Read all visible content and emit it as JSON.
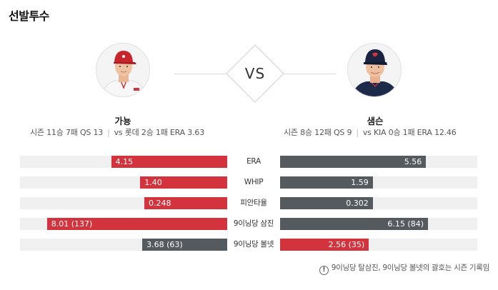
{
  "section": {
    "title": "선발투수"
  },
  "vs_label": "VS",
  "left_pitcher": {
    "name": "가뇽",
    "season": "시즌 11승 7패 QS 13",
    "versus": "vs 롯데 2승 1패 ERA 3.63"
  },
  "right_pitcher": {
    "name": "샘슨",
    "season": "시즌 8승 12패 QS 9",
    "versus": "vs KIA 0승 1패 ERA 12.46"
  },
  "stats": [
    {
      "label": "ERA",
      "left": "4.15",
      "right": "5.56",
      "left_fraction": 0.56,
      "right_fraction": 0.74,
      "left_color": "red",
      "right_color": "gray"
    },
    {
      "label": "WHIP",
      "left": "1.40",
      "right": "1.59",
      "left_fraction": 0.42,
      "right_fraction": 0.47,
      "left_color": "red",
      "right_color": "gray"
    },
    {
      "label": "피안타율",
      "left": "0.248",
      "right": "0.302",
      "left_fraction": 0.4,
      "right_fraction": 0.47,
      "left_color": "red",
      "right_color": "gray"
    },
    {
      "label": "9이닝당 삼진",
      "left": "8.01 (137)",
      "right": "6.15 (84)",
      "left_fraction": 0.87,
      "right_fraction": 0.75,
      "left_color": "red",
      "right_color": "gray"
    },
    {
      "label": "9이닝당 볼넷",
      "left": "3.68 (63)",
      "right": "2.56 (35)",
      "left_fraction": 0.41,
      "right_fraction": 0.45,
      "left_color": "gray",
      "right_color": "red"
    }
  ],
  "footnote": {
    "icon": "!",
    "text": "9이닝당 탈삼진, 9이닝당 볼넷의 괄호는 시즌 기록임"
  },
  "colors": {
    "red": "#d2333c",
    "gray": "#555a5f",
    "track": "#f0f0f0"
  }
}
